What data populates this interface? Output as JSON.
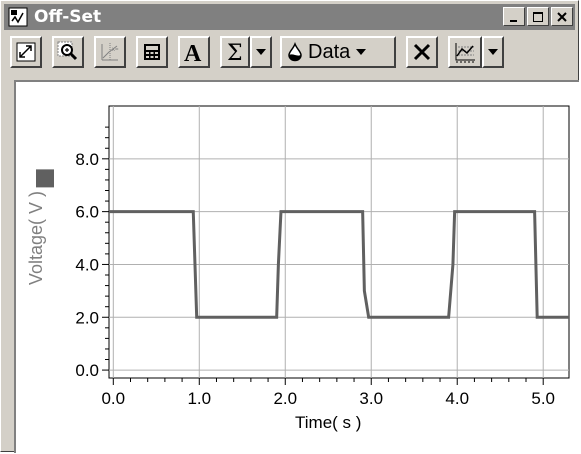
{
  "window": {
    "title": "Off-Set"
  },
  "toolbar": {
    "data_label": "Data",
    "tools": [
      "autoscale-icon",
      "zoom-icon",
      "examine-icon",
      "calculator-icon",
      "annotation-icon",
      "statistics-icon",
      "data-drop-icon",
      "delete-icon",
      "graph-options-icon"
    ]
  },
  "chart_data": {
    "type": "line",
    "title": "",
    "xlabel": "Time( s )",
    "ylabel": "Voltage( V )",
    "xlim": [
      -0.05,
      5.3
    ],
    "ylim": [
      -0.3,
      10.0
    ],
    "x_ticks": [
      "0.0",
      "1.0",
      "2.0",
      "3.0",
      "4.0",
      "5.0"
    ],
    "y_ticks": [
      "0.0",
      "2.0",
      "4.0",
      "6.0",
      "8.0"
    ],
    "grid": true,
    "series": [
      {
        "color": "#606060",
        "x": [
          -0.05,
          0.93,
          0.95,
          0.97,
          1.9,
          1.92,
          1.95,
          2.9,
          2.92,
          2.97,
          3.9,
          3.95,
          3.97,
          4.9,
          4.93,
          5.3
        ],
        "y": [
          6.0,
          6.0,
          4.0,
          2.0,
          2.0,
          4.0,
          6.0,
          6.0,
          3.0,
          2.0,
          2.0,
          4.0,
          6.0,
          6.0,
          2.0,
          2.0
        ]
      }
    ]
  }
}
